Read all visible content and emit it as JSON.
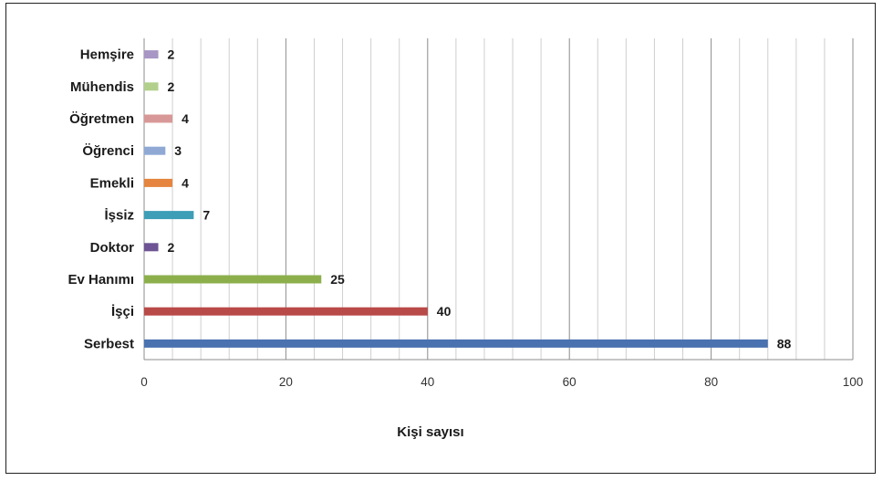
{
  "chart_data": {
    "type": "bar",
    "orientation": "horizontal",
    "categories": [
      "Serbest",
      "İşçi",
      "Ev Hanımı",
      "Doktor",
      "İşsiz",
      "Emekli",
      "Öğrenci",
      "Öğretmen",
      "Mühendis",
      "Hemşire"
    ],
    "values": [
      88,
      40,
      25,
      2,
      7,
      4,
      3,
      4,
      2,
      2
    ],
    "colors": [
      "#4a72b0",
      "#b84a48",
      "#8caf4c",
      "#6e5494",
      "#3e9eb7",
      "#e5853f",
      "#8fa9d4",
      "#d89897",
      "#b2d08c",
      "#a896c4"
    ],
    "title": "",
    "xlabel": "Kişi sayısı",
    "ylabel": "",
    "xlim": [
      0,
      100
    ],
    "xticks": [
      0,
      20,
      40,
      60,
      80,
      100
    ],
    "grid": {
      "vertical_major": true,
      "vertical_minor": true
    },
    "legend": "none",
    "data_labels": true
  }
}
